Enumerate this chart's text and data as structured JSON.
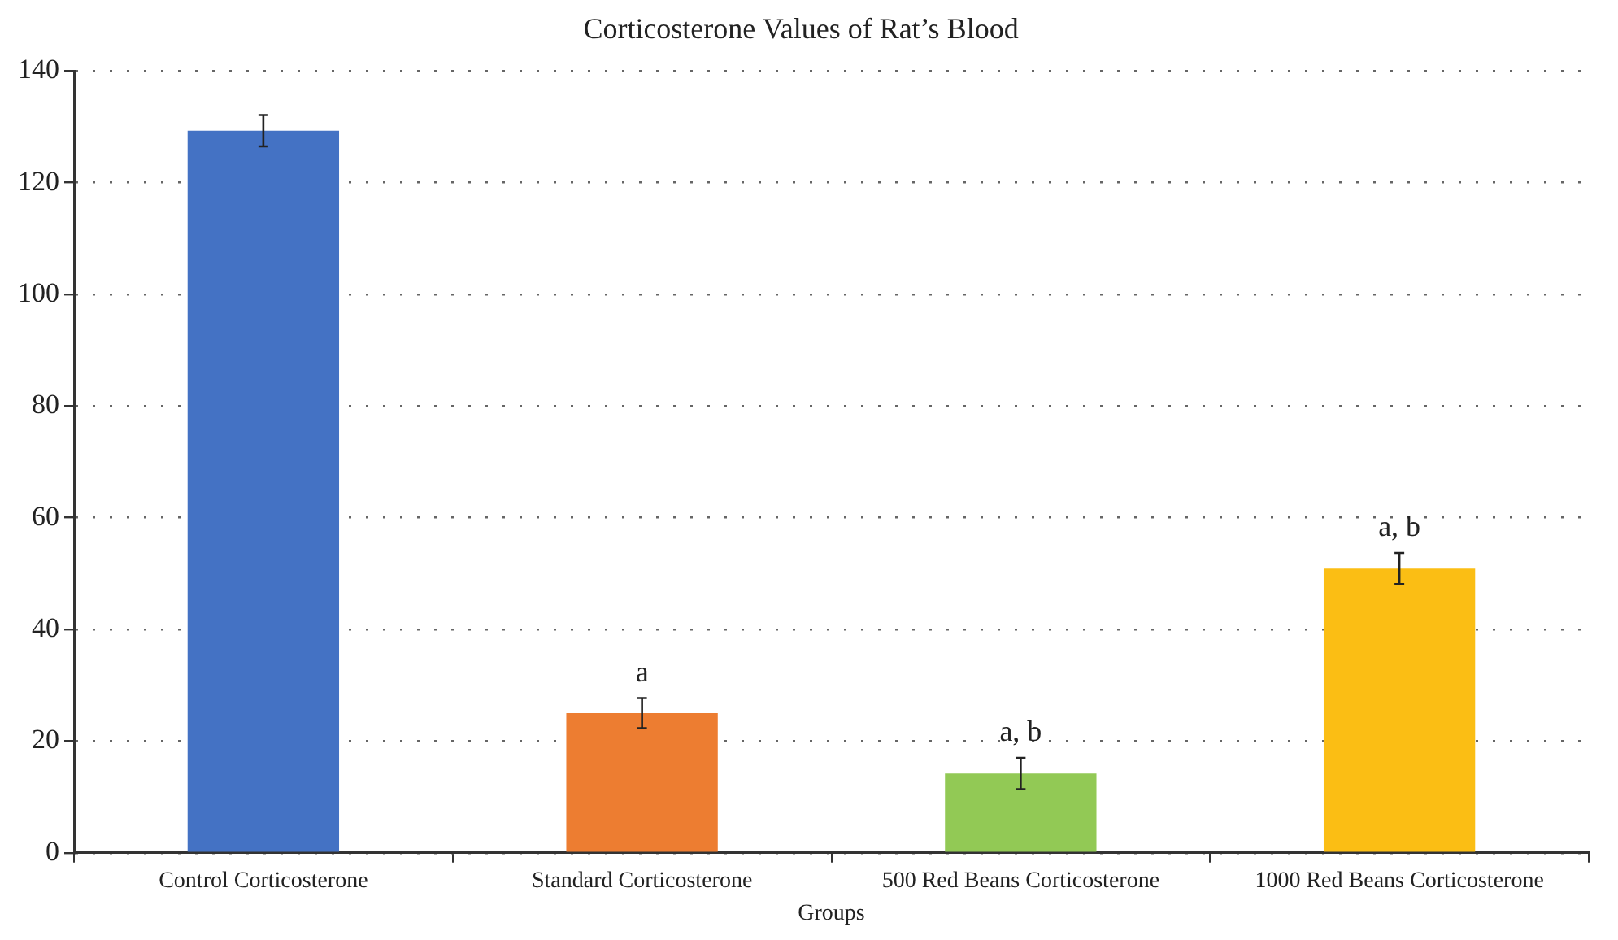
{
  "chart_data": {
    "type": "bar",
    "title": "Corticosterone Values of Rat’s Blood",
    "xlabel": "Groups",
    "categories": [
      "Control Corticosterone",
      "Standard Corticosterone",
      "500 Red Beans Corticosterone",
      "1000 Red Beans Corticosterone"
    ],
    "values": [
      129.3,
      25,
      14.2,
      50.9
    ],
    "colors": [
      "#4472c4",
      "#ed7d31",
      "#92c955",
      "#fbbe14"
    ],
    "errors": [
      2.8,
      2.7,
      2.8,
      2.8
    ],
    "ylim": [
      0,
      140
    ],
    "yticks": [
      0,
      20,
      40,
      60,
      80,
      100,
      120,
      140
    ],
    "grid": "y",
    "annotations": [
      {
        "text": "a",
        "x": "Standard Corticosterone",
        "y": 28.3
      },
      {
        "text": "a, b",
        "x": "500 Red Beans Corticosterone",
        "y": 17.7
      },
      {
        "text": "a, b",
        "x": "1000 Red Beans Corticosterone",
        "y": 54.3
      }
    ]
  }
}
